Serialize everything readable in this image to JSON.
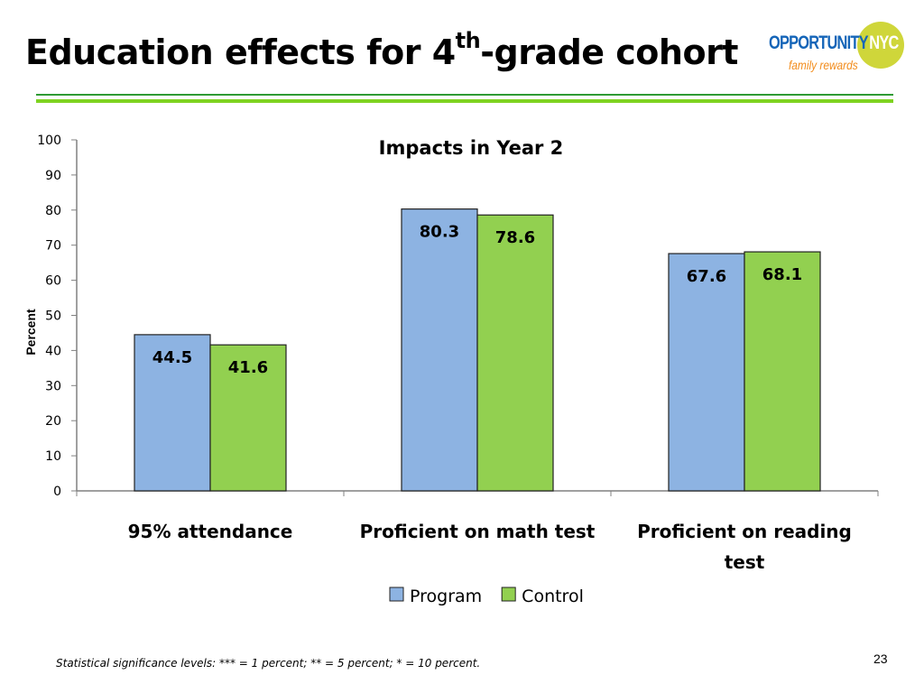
{
  "slide": {
    "title": "Education effects for 4",
    "title_superscript": "th",
    "title_suffix": "-grade cohort"
  },
  "logo": {
    "word": "OPPORTUNITY",
    "word_accent": "NYC",
    "tagline": "family rewards"
  },
  "chart_data": {
    "type": "bar",
    "title": "Impacts in Year 2",
    "ylabel": "Percent",
    "xlabel": "",
    "ylim": [
      0,
      100
    ],
    "yticks": [
      0,
      10,
      20,
      30,
      40,
      50,
      60,
      70,
      80,
      90,
      100
    ],
    "categories": [
      "95% attendance",
      "Proficient on math test",
      "Proficient on reading test"
    ],
    "series": [
      {
        "name": "Program",
        "color": "#8db3e2",
        "values": [
          44.5,
          80.3,
          67.6
        ]
      },
      {
        "name": "Control",
        "color": "#92d050",
        "values": [
          41.6,
          78.6,
          68.1
        ]
      }
    ],
    "grid": false,
    "legend_position": "bottom"
  },
  "footer": {
    "note": "Statistical significance levels: *** = 1 percent; ** = 5 percent; * = 10 percent.",
    "page_number": "23"
  }
}
